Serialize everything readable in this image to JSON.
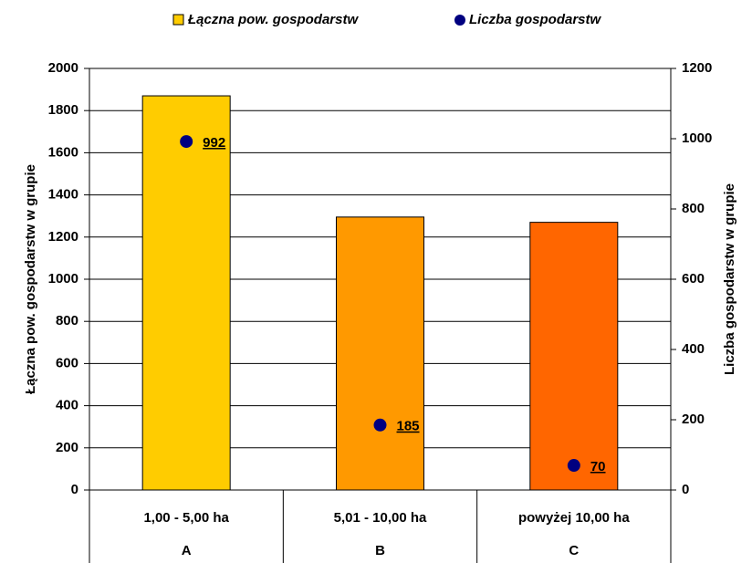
{
  "chart_data": {
    "type": "bar",
    "categories": [
      "1,00 - 5,00 ha",
      "5,01 - 10,00 ha",
      "powyżej 10,00 ha"
    ],
    "groups": [
      "A",
      "B",
      "C"
    ],
    "ylabel": "Łączna pow. gospodarstw w grupie",
    "y2label": "Liczba gospodarstw w grupie",
    "ylim": [
      0,
      2000
    ],
    "yticks": [
      0,
      200,
      400,
      600,
      800,
      1000,
      1200,
      1400,
      1600,
      1800,
      2000
    ],
    "y2lim": [
      0,
      1200
    ],
    "y2ticks": [
      0,
      200,
      400,
      600,
      800,
      1000,
      1200
    ],
    "grid": true,
    "legend": "top",
    "series": [
      {
        "name": "Łączna pow. gospodarstw",
        "type": "bar",
        "colors": [
          "#ffcc00",
          "#ff9900",
          "#ff6600"
        ],
        "values": [
          1870,
          1295,
          1270
        ]
      },
      {
        "name": "Liczba gospodarstw",
        "type": "scatter",
        "axis": "y2",
        "color": "#000080",
        "values": [
          992,
          185,
          70
        ]
      }
    ]
  }
}
